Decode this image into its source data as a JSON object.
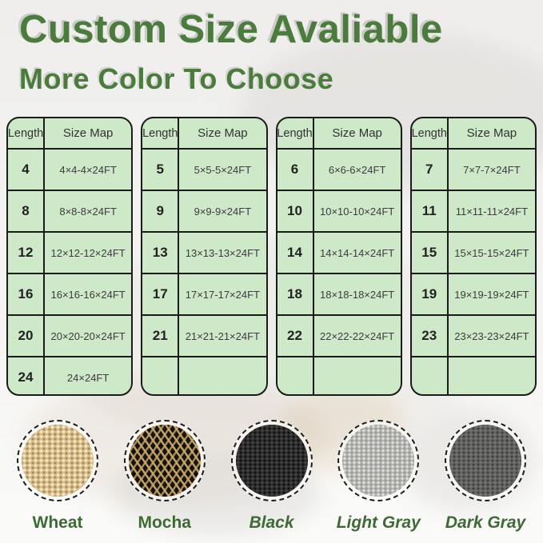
{
  "title": "Custom Size Avaliable",
  "subtitle": "More Color To Choose",
  "colors": {
    "heading_green": "#4a7d3b",
    "table_background": "#cde9c8",
    "table_border": "#1b1b1b",
    "label_green": "#3c6b33",
    "wheat": "#d8bf8d",
    "mocha": "#5a4a2e",
    "black": "#2d2d2d",
    "light_gray": "#b5b5b2",
    "dark_gray": "#636361"
  },
  "tables": [
    {
      "headers": [
        "Length",
        "Size Map"
      ],
      "rows": [
        [
          "4",
          "4×4-4×24FT"
        ],
        [
          "8",
          "8×8-8×24FT"
        ],
        [
          "12",
          "12×12-12×24FT"
        ],
        [
          "16",
          "16×16-16×24FT"
        ],
        [
          "20",
          "20×20-20×24FT"
        ],
        [
          "24",
          "24×24FT"
        ]
      ]
    },
    {
      "headers": [
        "Length",
        "Size Map"
      ],
      "rows": [
        [
          "5",
          "5×5-5×24FT"
        ],
        [
          "9",
          "9×9-9×24FT"
        ],
        [
          "13",
          "13×13-13×24FT"
        ],
        [
          "17",
          "17×17-17×24FT"
        ],
        [
          "21",
          "21×21-21×24FT"
        ],
        [
          "",
          ""
        ]
      ]
    },
    {
      "headers": [
        "Length",
        "Size Map"
      ],
      "rows": [
        [
          "6",
          "6×6-6×24FT"
        ],
        [
          "10",
          "10×10-10×24FT"
        ],
        [
          "14",
          "14×14-14×24FT"
        ],
        [
          "18",
          "18×18-18×24FT"
        ],
        [
          "22",
          "22×22-22×24FT"
        ],
        [
          "",
          ""
        ]
      ]
    },
    {
      "headers": [
        "Length",
        "Size Map"
      ],
      "rows": [
        [
          "7",
          "7×7-7×24FT"
        ],
        [
          "11",
          "11×11-11×24FT"
        ],
        [
          "15",
          "15×15-15×24FT"
        ],
        [
          "19",
          "19×19-19×24FT"
        ],
        [
          "23",
          "23×23-23×24FT"
        ],
        [
          "",
          ""
        ]
      ]
    }
  ],
  "swatches": [
    {
      "name": "Wheat"
    },
    {
      "name": "Mocha"
    },
    {
      "name": "Black"
    },
    {
      "name": "Light Gray"
    },
    {
      "name": "Dark Gray"
    }
  ]
}
